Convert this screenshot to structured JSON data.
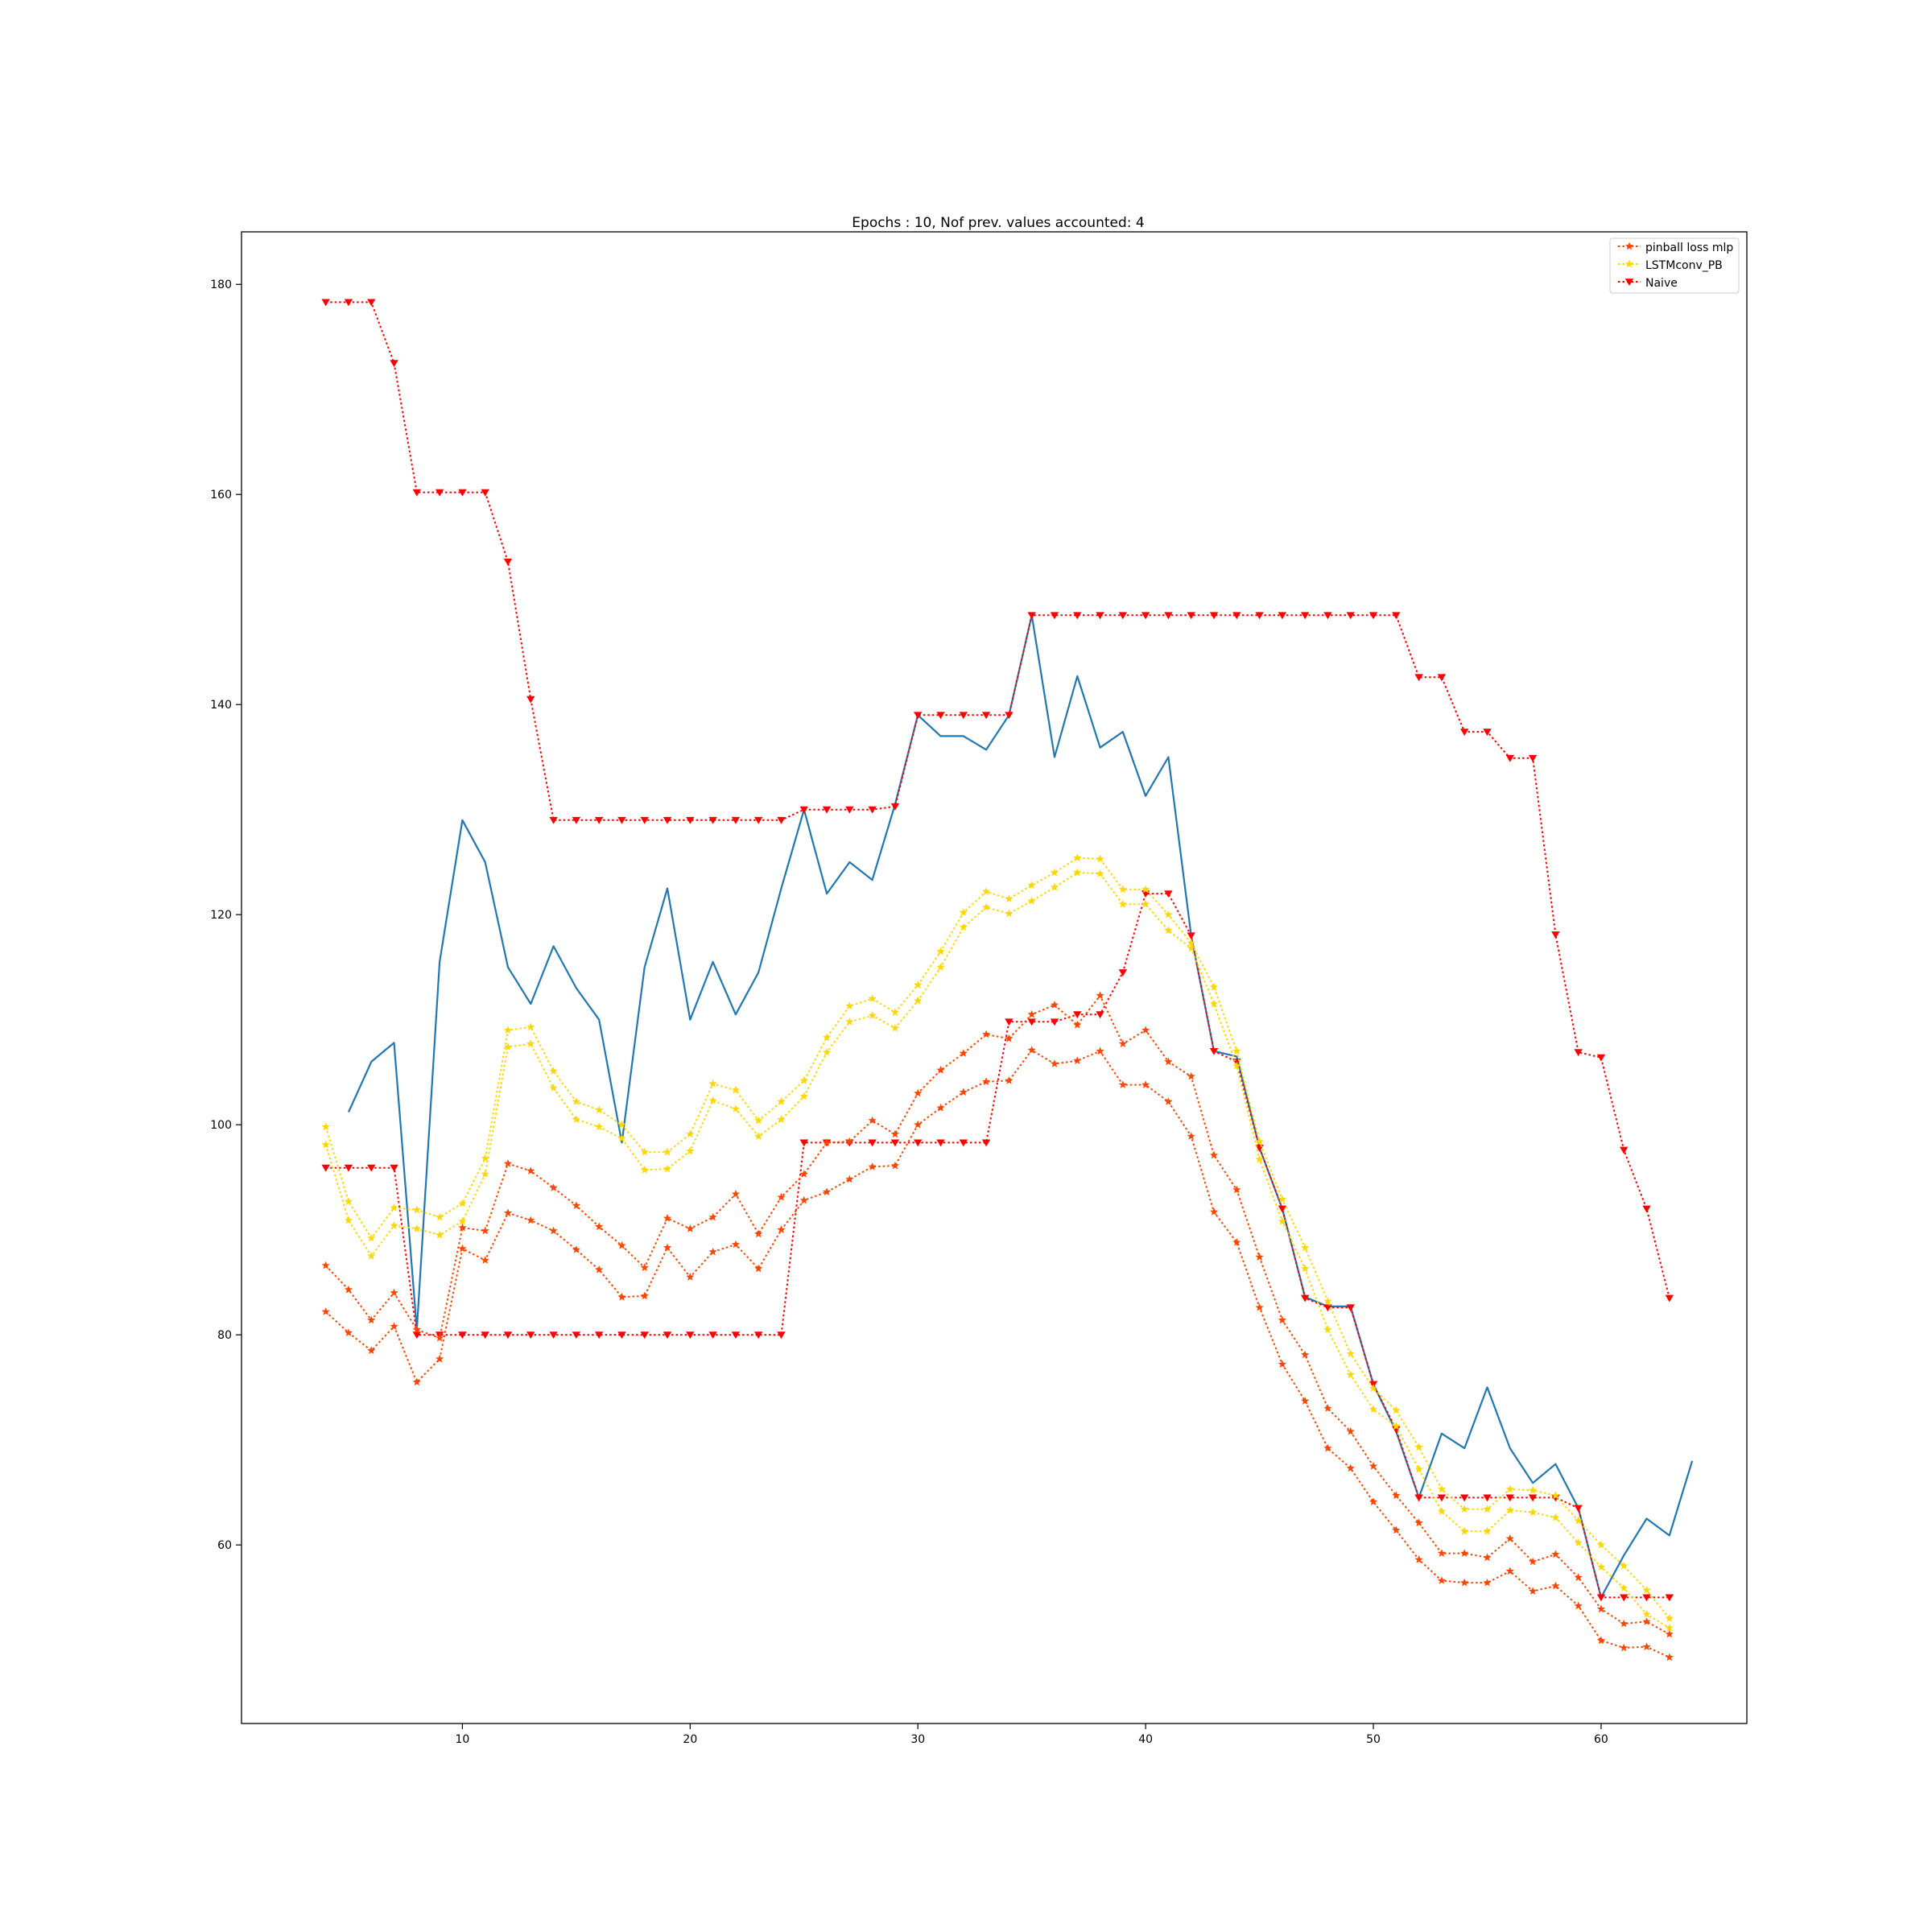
{
  "chart_data": {
    "type": "line",
    "title": "Epochs : 10, Nof prev. values accounted: 4",
    "xlabel": "",
    "ylabel": "",
    "xlim": [
      0.3,
      66.4
    ],
    "ylim": [
      43,
      185
    ],
    "xticks": [
      10,
      20,
      30,
      40,
      50,
      60
    ],
    "yticks": [
      60,
      80,
      100,
      120,
      140,
      160,
      180
    ],
    "grid": false,
    "legend_position": "top-right",
    "legend": [
      {
        "label": "pinball loss mlp",
        "color": "#ff4500",
        "marker": "star"
      },
      {
        "label": "LSTMconv_PB",
        "color": "#ffd700",
        "marker": "star"
      },
      {
        "label": "Naive",
        "color": "#ff0000",
        "marker": "triangle-down"
      }
    ],
    "actual": {
      "color": "#1f77b4",
      "x": [
        5,
        6,
        7,
        8,
        9,
        10,
        11,
        12,
        13,
        14,
        15,
        16,
        17,
        18,
        19,
        20,
        21,
        22,
        23,
        24,
        25,
        26,
        27,
        28,
        29,
        30,
        31,
        32,
        33,
        34,
        35,
        36,
        37,
        38,
        39,
        40,
        41,
        42,
        43,
        44,
        45,
        46,
        47,
        48,
        49,
        50,
        51,
        52,
        53,
        54,
        55,
        56,
        57,
        58,
        59,
        60,
        61,
        62,
        63,
        64
      ],
      "y": [
        101.2,
        106,
        107.8,
        80.5,
        115.5,
        129,
        125,
        115,
        111.5,
        117,
        113,
        110,
        98.3,
        115,
        122.5,
        110,
        115.5,
        110.5,
        114.5,
        122.5,
        130,
        122,
        125,
        123.3,
        130.5,
        139,
        137,
        137,
        135.7,
        139,
        148.5,
        135,
        142.7,
        135.9,
        137.4,
        131.3,
        135,
        118,
        107,
        106.5,
        97.8,
        92,
        83.6,
        82.7,
        82.7,
        75.3,
        70.8,
        64.5,
        70.6,
        69.2,
        75,
        69.2,
        65.9,
        67.7,
        63.5,
        55,
        59,
        62.5,
        60.9,
        68
      ]
    },
    "series": [
      {
        "group": "Naive",
        "color": "#ff0000",
        "marker": "triangle-down",
        "x": [
          4,
          5,
          6,
          7,
          8,
          9,
          10,
          11,
          12,
          13,
          14,
          15,
          16,
          17,
          18,
          19,
          20,
          21,
          22,
          23,
          24,
          25,
          26,
          27,
          28,
          29,
          30,
          31,
          32,
          33,
          34,
          35,
          36,
          37,
          38,
          39,
          40,
          41,
          42,
          43,
          44,
          45,
          46,
          47,
          48,
          49,
          50,
          51,
          52,
          53,
          54,
          55,
          56,
          57,
          58,
          59,
          60,
          61,
          62,
          63
        ],
        "values": [
          178.3,
          178.3,
          178.3,
          172.5,
          160.2,
          160.2,
          160.2,
          160.2,
          153.6,
          140.5,
          129,
          129,
          129,
          129,
          129,
          129,
          129,
          129,
          129,
          129,
          129,
          130,
          130,
          130,
          130,
          130.3,
          139,
          139,
          139,
          139,
          139,
          148.5,
          148.5,
          148.5,
          148.5,
          148.5,
          148.5,
          148.5,
          148.5,
          148.5,
          148.5,
          148.5,
          148.5,
          148.5,
          148.5,
          148.5,
          148.5,
          148.5,
          142.6,
          142.6,
          137.4,
          137.4,
          134.9,
          134.9,
          118.1,
          106.9,
          106.4,
          97.6,
          92,
          83.5
        ]
      },
      {
        "group": "Naive",
        "color": "#ff0000",
        "marker": "triangle-down",
        "x": [
          4,
          5,
          6,
          7,
          8,
          9,
          10,
          11,
          12,
          13,
          14,
          15,
          16,
          17,
          18,
          19,
          20,
          21,
          22,
          23,
          24,
          25,
          26,
          27,
          28,
          29,
          30,
          31,
          32,
          33,
          34,
          35,
          36,
          37,
          38,
          39,
          40,
          41,
          42,
          43,
          44,
          45,
          46,
          47,
          48,
          49,
          50,
          51,
          52,
          53,
          54,
          55,
          56,
          57,
          58,
          59,
          60,
          61,
          62,
          63
        ],
        "values": [
          95.9,
          95.9,
          95.9,
          95.9,
          80,
          80,
          80,
          80,
          80,
          80,
          80,
          80,
          80,
          80,
          80,
          80,
          80,
          80,
          80,
          80,
          80,
          98.3,
          98.3,
          98.3,
          98.3,
          98.3,
          98.3,
          98.3,
          98.3,
          98.3,
          109.8,
          109.8,
          109.8,
          110.5,
          110.5,
          114.5,
          122,
          122,
          118,
          107,
          106,
          97.8,
          92,
          83.5,
          82.6,
          82.6,
          75.3,
          71,
          64.5,
          64.5,
          64.5,
          64.5,
          64.5,
          64.5,
          64.5,
          63.5,
          55,
          55,
          55,
          55
        ]
      },
      {
        "group": "LSTMconv_PB",
        "color": "#ffd700",
        "marker": "star",
        "x": [
          4,
          5,
          6,
          7,
          8,
          9,
          10,
          11,
          12,
          13,
          14,
          15,
          16,
          17,
          18,
          19,
          20,
          21,
          22,
          23,
          24,
          25,
          26,
          27,
          28,
          29,
          30,
          31,
          32,
          33,
          34,
          35,
          36,
          37,
          38,
          39,
          40,
          41,
          42,
          43,
          44,
          45,
          46,
          47,
          48,
          49,
          50,
          51,
          52,
          53,
          54,
          55,
          56,
          57,
          58,
          59,
          60,
          61,
          62,
          63
        ],
        "values": [
          99.8,
          92.7,
          89.2,
          92.1,
          91.9,
          91.2,
          92.5,
          96.8,
          109,
          109.3,
          105.1,
          102.2,
          101.4,
          100,
          97.4,
          97.4,
          99.1,
          103.9,
          103.3,
          100.4,
          102.2,
          104.2,
          108.3,
          111.3,
          112,
          110.7,
          113.3,
          116.5,
          120.2,
          122.2,
          121.5,
          122.8,
          124,
          125.4,
          125.3,
          122.4,
          122.4,
          120,
          117.3,
          113.1,
          107,
          98.4,
          92.9,
          88.3,
          83.2,
          78.2,
          74.9,
          72.8,
          69.3,
          65.3,
          63.4,
          63.4,
          65.3,
          65.2,
          64.7,
          62.3,
          60,
          58,
          55.7,
          53
        ]
      },
      {
        "group": "LSTMconv_PB",
        "color": "#ffd700",
        "marker": "star",
        "x": [
          4,
          5,
          6,
          7,
          8,
          9,
          10,
          11,
          12,
          13,
          14,
          15,
          16,
          17,
          18,
          19,
          20,
          21,
          22,
          23,
          24,
          25,
          26,
          27,
          28,
          29,
          30,
          31,
          32,
          33,
          34,
          35,
          36,
          37,
          38,
          39,
          40,
          41,
          42,
          43,
          44,
          45,
          46,
          47,
          48,
          49,
          50,
          51,
          52,
          53,
          54,
          55,
          56,
          57,
          58,
          59,
          60,
          61,
          62,
          63
        ],
        "values": [
          98.1,
          90.9,
          87.5,
          90.4,
          90.1,
          89.5,
          90.8,
          95.3,
          107.4,
          107.7,
          103.5,
          100.5,
          99.8,
          98.7,
          95.7,
          95.8,
          97.5,
          102.3,
          101.5,
          98.9,
          100.5,
          102.7,
          106.9,
          109.8,
          110.4,
          109.2,
          111.8,
          115,
          118.8,
          120.7,
          120.1,
          121.3,
          122.6,
          124,
          123.9,
          121,
          121,
          118.5,
          116.8,
          111.5,
          105.6,
          96.7,
          90.8,
          86.3,
          80.5,
          76.2,
          72.9,
          71.3,
          67.2,
          63.2,
          61.3,
          61.3,
          63.3,
          63.1,
          62.6,
          60.2,
          57.9,
          55.9,
          53.4,
          52.1
        ]
      },
      {
        "group": "pinball loss mlp",
        "color": "#ff4500",
        "marker": "star",
        "x": [
          4,
          5,
          6,
          7,
          8,
          9,
          10,
          11,
          12,
          13,
          14,
          15,
          16,
          17,
          18,
          19,
          20,
          21,
          22,
          23,
          24,
          25,
          26,
          27,
          28,
          29,
          30,
          31,
          32,
          33,
          34,
          35,
          36,
          37,
          38,
          39,
          40,
          41,
          42,
          43,
          44,
          45,
          46,
          47,
          48,
          49,
          50,
          51,
          52,
          53,
          54,
          55,
          56,
          57,
          58,
          59,
          60,
          61,
          62,
          63
        ],
        "values": [
          86.6,
          84.3,
          81.4,
          84,
          80.5,
          79.7,
          90.2,
          89.9,
          96.3,
          95.6,
          94,
          92.3,
          90.3,
          88.5,
          86.4,
          91.1,
          90.1,
          91.2,
          93.4,
          89.6,
          93.1,
          95.3,
          98.3,
          98.4,
          100.4,
          99.1,
          103,
          105.2,
          106.8,
          108.6,
          108.2,
          110.5,
          111.4,
          109.5,
          112.3,
          107.7,
          109,
          106,
          104.6,
          97.1,
          93.8,
          87.4,
          81.4,
          78.1,
          73,
          70.8,
          67.5,
          64.7,
          62.1,
          59.2,
          59.2,
          58.8,
          60.6,
          58.4,
          59.1,
          56.9,
          53.9,
          52.5,
          52.7,
          51.5
        ]
      },
      {
        "group": "pinball loss mlp",
        "color": "#ff4500",
        "marker": "star",
        "x": [
          4,
          5,
          6,
          7,
          8,
          9,
          10,
          11,
          12,
          13,
          14,
          15,
          16,
          17,
          18,
          19,
          20,
          21,
          22,
          23,
          24,
          25,
          26,
          27,
          28,
          29,
          30,
          31,
          32,
          33,
          34,
          35,
          36,
          37,
          38,
          39,
          40,
          41,
          42,
          43,
          44,
          45,
          46,
          47,
          48,
          49,
          50,
          51,
          52,
          53,
          54,
          55,
          56,
          57,
          58,
          59,
          60,
          61,
          62,
          63
        ],
        "values": [
          82.2,
          80.2,
          78.5,
          80.8,
          75.5,
          77.7,
          88.2,
          87.1,
          91.6,
          90.9,
          89.9,
          88.1,
          86.2,
          83.6,
          83.7,
          88.3,
          85.5,
          87.9,
          88.6,
          86.3,
          90,
          92.8,
          93.6,
          94.8,
          96,
          96.1,
          100,
          101.6,
          103.1,
          104.1,
          104.2,
          107.1,
          105.8,
          106.1,
          107,
          103.8,
          103.8,
          102.2,
          98.9,
          91.7,
          88.8,
          82.6,
          77.2,
          73.7,
          69.2,
          67.3,
          64.1,
          61.4,
          58.6,
          56.6,
          56.4,
          56.4,
          57.5,
          55.6,
          56.1,
          54.2,
          50.9,
          50.2,
          50.3,
          49.3
        ]
      }
    ]
  }
}
